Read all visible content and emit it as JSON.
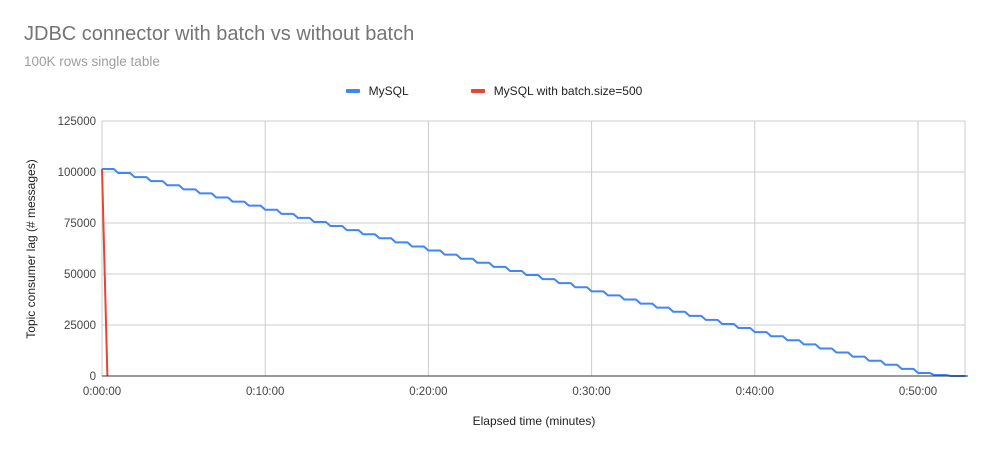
{
  "chart_data": {
    "type": "line",
    "title": "JDBC connector with batch vs without batch",
    "subtitle": "100K rows single table",
    "xlabel": "Elapsed time (minutes)",
    "ylabel": "Topic consumer lag (# messages)",
    "x_ticks": [
      "0:00:00",
      "0:10:00",
      "0:20:00",
      "0:30:00",
      "0:40:00",
      "0:50:00"
    ],
    "y_ticks": [
      "0",
      "25000",
      "50000",
      "75000",
      "100000",
      "125000"
    ],
    "ylim": [
      0,
      125000
    ],
    "xlim_minutes": [
      0,
      53
    ],
    "grid": true,
    "legend_position": "top",
    "series": [
      {
        "name": "MySQL",
        "color": "#4285f4",
        "shape": "step-down ~2000 messages per minute",
        "x_minutes": [
          0,
          1,
          2,
          3,
          4,
          5,
          6,
          7,
          8,
          9,
          10,
          11,
          12,
          13,
          14,
          15,
          16,
          17,
          18,
          19,
          20,
          21,
          22,
          23,
          24,
          25,
          26,
          27,
          28,
          29,
          30,
          31,
          32,
          33,
          34,
          35,
          36,
          37,
          38,
          39,
          40,
          41,
          42,
          43,
          44,
          45,
          46,
          47,
          48,
          49,
          50,
          51,
          52,
          53
        ],
        "values": [
          101500,
          99500,
          97500,
          95500,
          93500,
          91500,
          89500,
          87500,
          85500,
          83500,
          81500,
          79500,
          77500,
          75500,
          73500,
          71500,
          69500,
          67500,
          65500,
          63500,
          61500,
          59500,
          57500,
          55500,
          53500,
          51500,
          49500,
          47500,
          45500,
          43500,
          41500,
          39500,
          37500,
          35500,
          33500,
          31500,
          29500,
          27500,
          25500,
          23500,
          21500,
          19500,
          17500,
          15500,
          13500,
          11500,
          9500,
          7500,
          5500,
          3500,
          1500,
          500,
          0,
          0
        ]
      },
      {
        "name": "MySQL with batch.size=500",
        "color": "#ea4335",
        "x_minutes": [
          0,
          0.33
        ],
        "values": [
          101500,
          0
        ]
      }
    ]
  },
  "legend": {
    "items": [
      {
        "label": "MySQL",
        "color": "#4285f4"
      },
      {
        "label": "MySQL with batch.size=500",
        "color": "#ea4335"
      }
    ]
  }
}
